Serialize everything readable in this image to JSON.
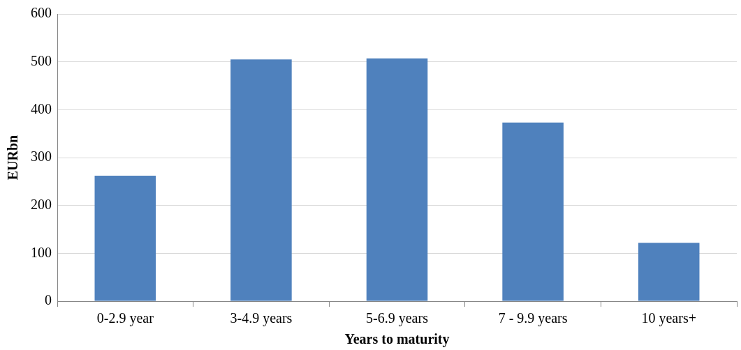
{
  "chart_data": {
    "type": "bar",
    "xlabel": "Years to maturity",
    "ylabel": "EURbn",
    "categories": [
      "0-2.9 year",
      "3-4.9 years",
      "5-6.9 years",
      "7 - 9.9 years",
      "10 years+"
    ],
    "values": [
      262,
      505,
      507,
      373,
      122
    ],
    "color": "#4f81bd",
    "ylim": [
      0,
      600
    ],
    "yticks": [
      0,
      100,
      200,
      300,
      400,
      500,
      600
    ],
    "grid": "y"
  }
}
